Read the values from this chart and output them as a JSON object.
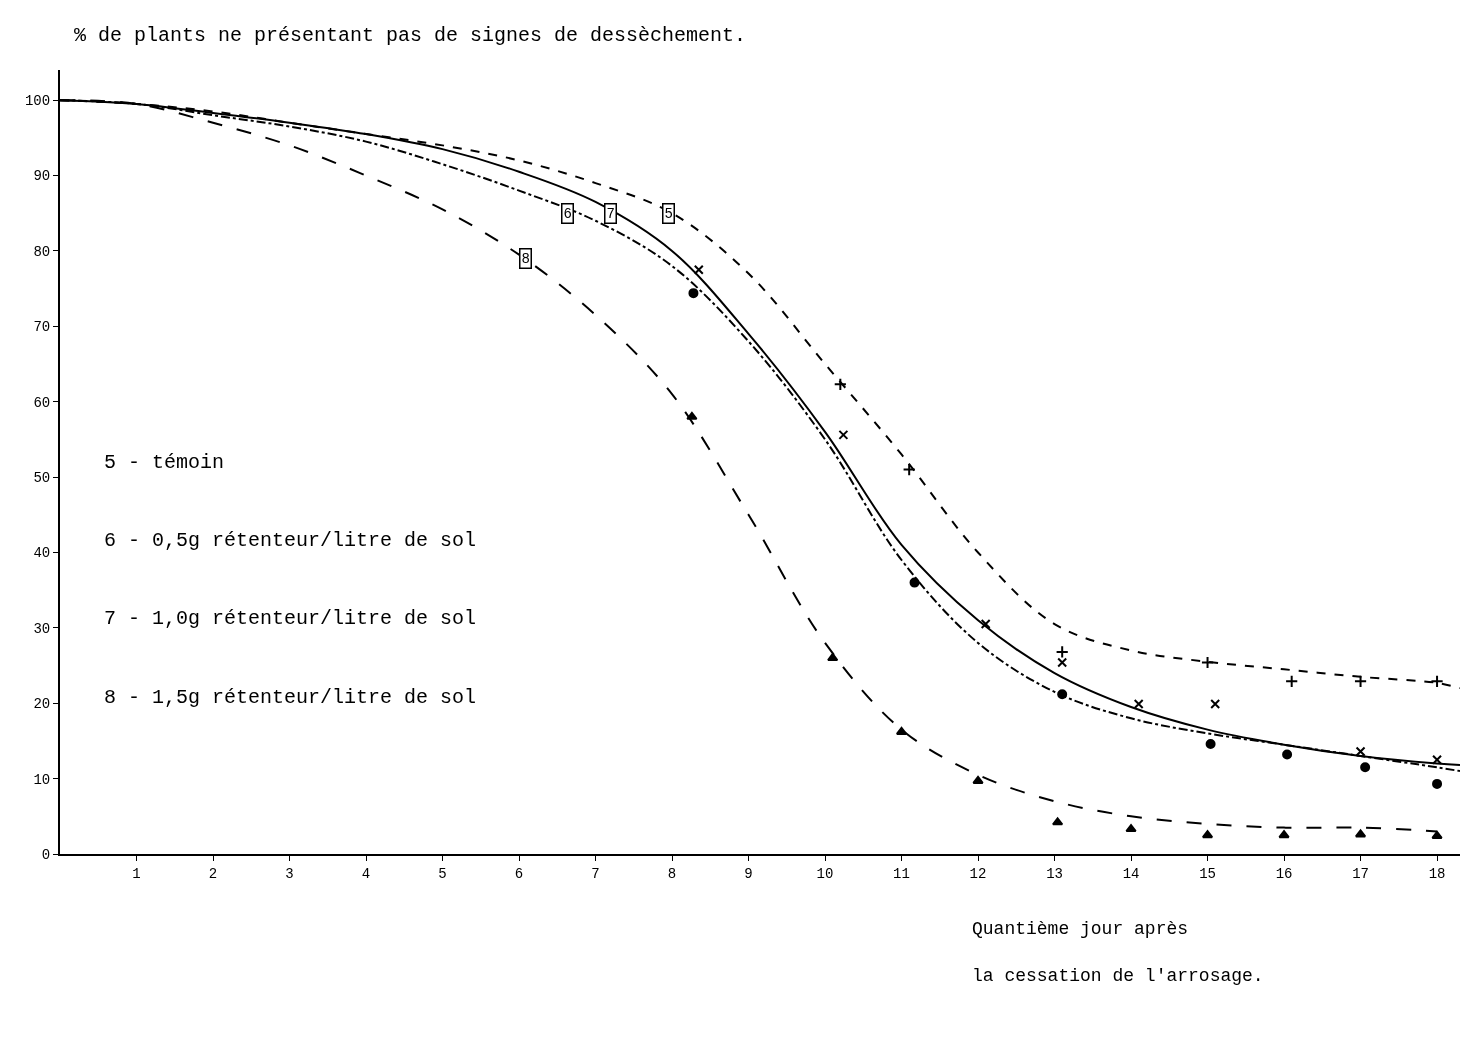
{
  "chart_data": {
    "type": "line",
    "title": "% de plants ne présentant pas de signes de dessèchement.",
    "xlabel": "Quantième jour après\nla cessation de l'arrosage.",
    "xlim": [
      0,
      18.3
    ],
    "ylim": [
      0,
      104
    ],
    "xticks": [
      1,
      2,
      3,
      4,
      5,
      6,
      7,
      8,
      9,
      10,
      11,
      12,
      13,
      14,
      15,
      16,
      17,
      18
    ],
    "yticks": [
      0,
      10,
      20,
      30,
      40,
      50,
      60,
      70,
      80,
      90,
      100
    ],
    "series": [
      {
        "color": "#000000",
        "line_style": "dashed",
        "marker": "none",
        "x": [
          0,
          1,
          2,
          3,
          4,
          5,
          6,
          7,
          8,
          9,
          10,
          11,
          12,
          13,
          14,
          15,
          16,
          17,
          18,
          18.3
        ],
        "values": [
          100,
          99.5,
          98.5,
          97,
          95.5,
          94,
          92,
          89,
          85,
          77,
          65,
          53,
          40,
          30.5,
          27,
          25.5,
          24.5,
          23.5,
          22.7,
          22
        ]
      },
      {
        "color": "#000000",
        "line_style": "dashdot",
        "marker": "none",
        "x": [
          0,
          1,
          2,
          3,
          4,
          5,
          6,
          7,
          8,
          9,
          10,
          11,
          12,
          13,
          14,
          15,
          16,
          17,
          18,
          18.3
        ],
        "values": [
          100,
          99.5,
          98,
          96.5,
          94.5,
          91.5,
          88,
          84,
          78,
          68,
          55,
          39,
          28,
          21.5,
          18,
          16,
          14.5,
          13,
          11.5,
          11
        ]
      },
      {
        "color": "#000000",
        "line_style": "solid",
        "marker": "none",
        "x": [
          0,
          1,
          2,
          3,
          4,
          5,
          6,
          7,
          8,
          9,
          10,
          11,
          12,
          13,
          14,
          15,
          16,
          17,
          18,
          18.3
        ],
        "values": [
          100,
          99.5,
          98.3,
          97,
          95.5,
          93.5,
          90.5,
          86.5,
          80,
          69,
          56,
          41,
          31,
          24,
          19.5,
          16.5,
          14.5,
          13,
          12,
          11.8
        ]
      },
      {
        "color": "#000000",
        "line_style": "longdash",
        "marker": "none",
        "x": [
          0,
          1,
          2,
          3,
          4,
          5,
          6,
          7,
          8,
          9,
          10,
          11,
          12,
          13,
          14,
          15,
          16,
          17,
          18
        ],
        "values": [
          100,
          99.5,
          97,
          94,
          90,
          85.5,
          79.5,
          71.5,
          61,
          45,
          28,
          16.5,
          10.5,
          7,
          5,
          4,
          3.5,
          3.5,
          3
        ]
      },
      {
        "type": "scatter",
        "color": "#000000",
        "marker": "cross",
        "x": [
          10.2,
          11.1,
          13.1,
          15,
          16.1,
          17,
          18
        ],
        "values": [
          62.3,
          51,
          26.8,
          25.4,
          22.9,
          22.9,
          22.9
        ]
      },
      {
        "type": "scatter",
        "color": "#000000",
        "marker": "x",
        "x": [
          8.35,
          10.24,
          12.1,
          13.1,
          14.1,
          15.1,
          17,
          18
        ],
        "values": [
          77.5,
          55.6,
          30.5,
          25.4,
          19.9,
          19.9,
          13.6,
          12.5
        ]
      },
      {
        "type": "scatter",
        "color": "#000000",
        "marker": "circle",
        "x": [
          8.28,
          11.17,
          13.1,
          15.04,
          16.04,
          17.06,
          18
        ],
        "values": [
          74.4,
          36,
          21.2,
          14.6,
          13.2,
          11.5,
          9.3
        ]
      },
      {
        "type": "scatter",
        "color": "#000000",
        "marker": "triangle",
        "x": [
          8.26,
          10.1,
          11,
          12,
          13.04,
          14,
          15,
          16,
          17,
          18
        ],
        "values": [
          58,
          26,
          16.2,
          9.7,
          4.2,
          3.3,
          2.5,
          2.5,
          2.6,
          2.4
        ]
      }
    ],
    "annotations": [
      "5 - témoin",
      "6 - 0,5g rétenteur/litre de sol",
      "7 - 1,0g rétenteur/litre de sol",
      "8 - 1,5g rétenteur/litre de sol",
      {
        "text": "8",
        "x": 6.08,
        "y": 79
      },
      {
        "text": "6",
        "x": 6.63,
        "y": 85
      },
      {
        "text": "7",
        "x": 7.19,
        "y": 85
      },
      {
        "text": "5",
        "x": 7.96,
        "y": 85
      }
    ]
  }
}
